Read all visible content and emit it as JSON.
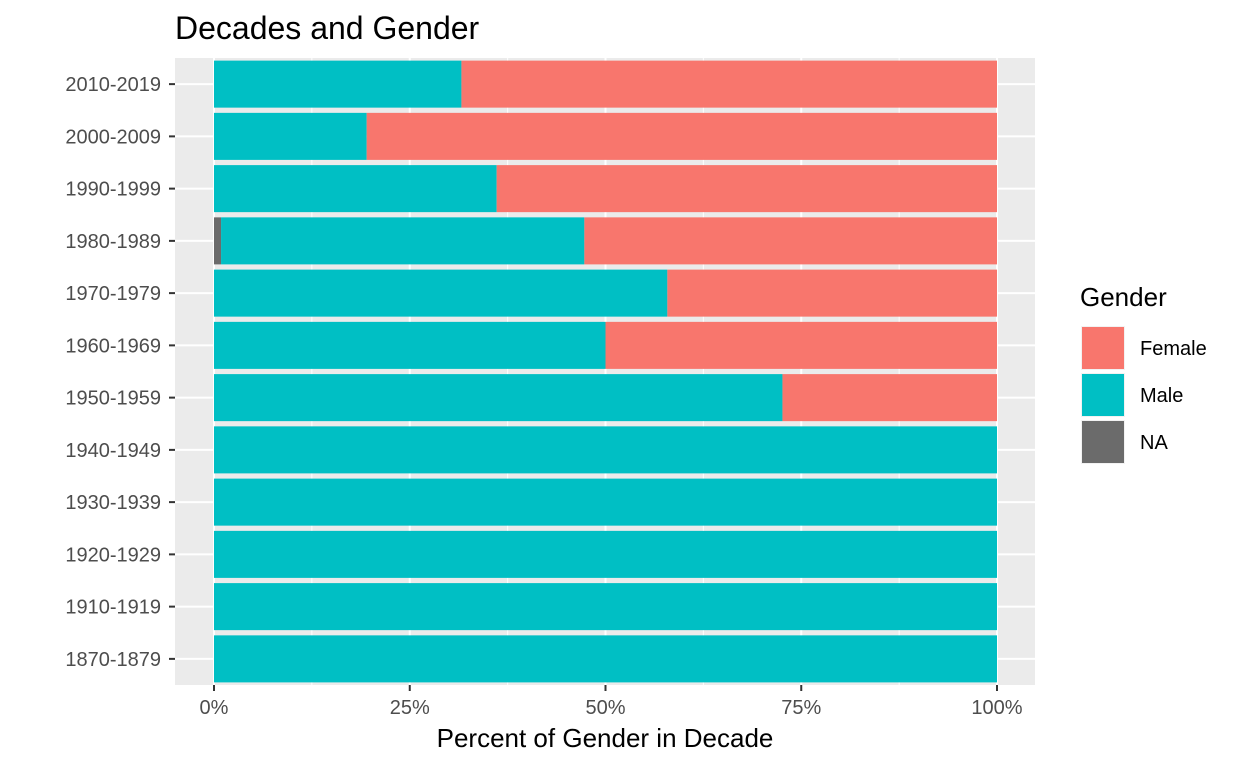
{
  "chart_data": {
    "type": "bar",
    "orientation": "horizontal",
    "stacked": "percent",
    "title": "Decades and Gender",
    "xlabel": "Percent of Gender in Decade",
    "ylabel": "",
    "xlim": [
      0,
      1
    ],
    "x_ticks": [
      0,
      0.25,
      0.5,
      0.75,
      1
    ],
    "x_tick_labels": [
      "0%",
      "25%",
      "50%",
      "75%",
      "100%"
    ],
    "grid": true,
    "legend_position": "right",
    "legend_title": "Gender",
    "categories": [
      "2010-2019",
      "2000-2009",
      "1990-1999",
      "1980-1989",
      "1970-1979",
      "1960-1969",
      "1950-1959",
      "1940-1949",
      "1930-1939",
      "1920-1929",
      "1910-1919",
      "1870-1879"
    ],
    "stack_order": [
      "NA",
      "Male",
      "Female"
    ],
    "series": [
      {
        "name": "Female",
        "color": "#F8766D",
        "values": [
          0.684,
          0.805,
          0.639,
          0.527,
          0.421,
          0.5,
          0.274,
          0,
          0,
          0,
          0,
          0
        ]
      },
      {
        "name": "Male",
        "color": "#00BFC4",
        "values": [
          0.316,
          0.195,
          0.361,
          0.464,
          0.579,
          0.5,
          0.726,
          1,
          1,
          1,
          1,
          1
        ]
      },
      {
        "name": "NA",
        "color": "#6B6B6B",
        "values": [
          0,
          0,
          0,
          0.009,
          0,
          0,
          0,
          0,
          0,
          0,
          0,
          0
        ]
      }
    ],
    "legend_order": [
      "Female",
      "Male",
      "NA"
    ]
  }
}
